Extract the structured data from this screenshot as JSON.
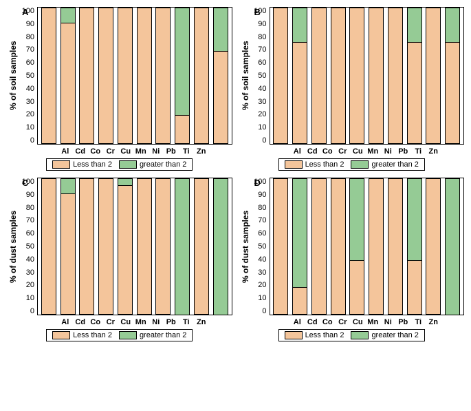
{
  "colors": {
    "less": "#f4c59b",
    "greater": "#95cb95",
    "border": "#000000",
    "bg": "#ffffff",
    "grid": "#e6e6e6"
  },
  "categories": [
    "Al",
    "Cd",
    "Co",
    "Cr",
    "Cu",
    "Mn",
    "Ni",
    "Pb",
    "Ti",
    "Zn"
  ],
  "ylim": [
    0,
    100
  ],
  "ytick_step": 10,
  "legend": {
    "less": "Less than 2",
    "greater": "greater than 2"
  },
  "panels": [
    {
      "id": "A",
      "ylabel": "% of soil samples",
      "less_values": [
        100,
        89,
        100,
        100,
        100,
        100,
        100,
        21,
        100,
        68
      ],
      "greater_values": [
        0,
        11,
        0,
        0,
        0,
        0,
        0,
        79,
        0,
        32
      ]
    },
    {
      "id": "B",
      "ylabel": "% of soil samples",
      "less_values": [
        100,
        75,
        100,
        100,
        100,
        100,
        100,
        75,
        100,
        75
      ],
      "greater_values": [
        0,
        25,
        0,
        0,
        0,
        0,
        0,
        25,
        0,
        25
      ]
    },
    {
      "id": "C",
      "ylabel": "% of dust samples",
      "less_values": [
        100,
        89,
        100,
        100,
        95,
        100,
        100,
        0,
        100,
        0
      ],
      "greater_values": [
        0,
        11,
        0,
        0,
        5,
        0,
        0,
        100,
        0,
        100
      ]
    },
    {
      "id": "D",
      "ylabel": "% of dust samples",
      "less_values": [
        100,
        20,
        100,
        100,
        40,
        100,
        100,
        40,
        100,
        0
      ],
      "greater_values": [
        0,
        80,
        0,
        0,
        60,
        0,
        0,
        60,
        0,
        100
      ]
    }
  ]
}
